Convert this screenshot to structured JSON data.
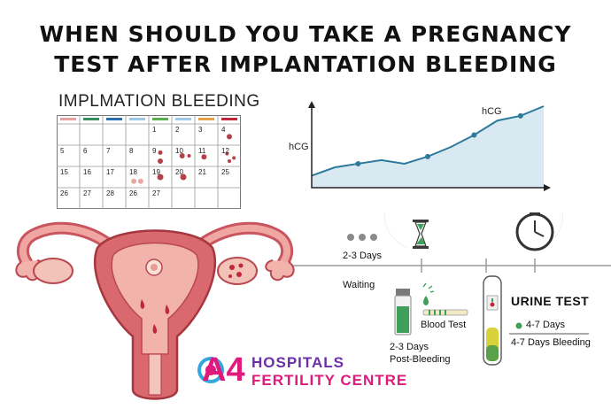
{
  "title": {
    "line1": "WHEN SHOULD YOU TAKE A PREGNANCY",
    "line2": "TEST AFTER IMPLANTATION BLEEDING"
  },
  "calendar": {
    "title": "IMPLMATION BLEEDING",
    "header_colors": [
      "#e8a0a0",
      "#3a8c5c",
      "#2b6fb0",
      "#9ec9e6",
      "#58b04c",
      "#9fc9e8",
      "#e3a24a",
      "#c0283a"
    ],
    "rows": [
      [
        "",
        "",
        "",
        "",
        "1",
        "2",
        "3",
        "4"
      ],
      [
        "5",
        "6",
        "7",
        "8",
        "9",
        "10",
        "11",
        "12"
      ],
      [
        "15",
        "16",
        "17",
        "18",
        "19",
        "20",
        "21",
        "25"
      ],
      [
        "26",
        "27",
        "28",
        "26",
        "27",
        "",
        "",
        ""
      ]
    ],
    "spot_color": "#b5404a"
  },
  "hcg_chart": {
    "y_label": "hCG",
    "line_label": "hCG",
    "line_color": "#2d7a9a",
    "fill_color": "#cfe3ef",
    "values": [
      1.0,
      1.7,
      2.0,
      2.3,
      2.0,
      2.6,
      3.4,
      4.4,
      5.6,
      6.0,
      6.8
    ]
  },
  "timeline": {
    "step1_time": "2-3 Days",
    "step1_label": "Waiting",
    "blood_test_label": "Blood Test",
    "blood_time_line1": "2-3 Days",
    "blood_time_line2": "Post-Bleeding",
    "urine_title": "URINE TEST",
    "urine_time": "4-7 Days",
    "urine_note": "4-7 Days Bleeding"
  },
  "brand": {
    "a4": "A4",
    "line1": "HOSPITALS",
    "line2": "FERTILITY CENTRE",
    "accent": "#e0197d",
    "secondary": "#6b2fa8",
    "logo_blue": "#35a7e0"
  },
  "icons": [
    "hourglass-icon",
    "clock-icon",
    "dots-icon",
    "test-tube-icon",
    "test-strip-icon",
    "urine-test-icon",
    "uterus-illustration",
    "logo-icon"
  ]
}
